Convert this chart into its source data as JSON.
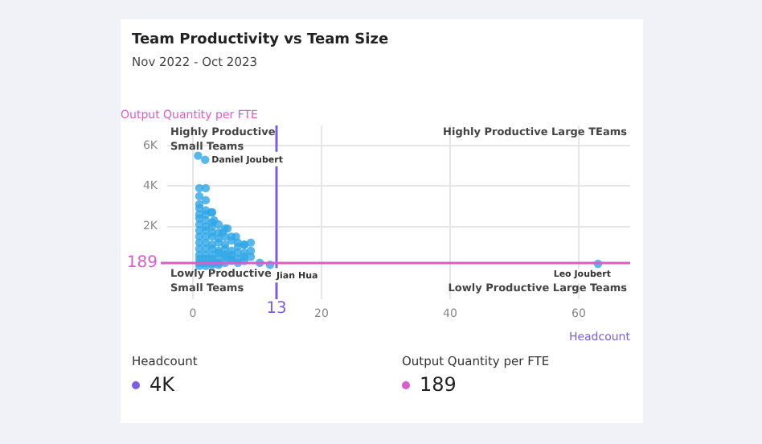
{
  "chart_data": {
    "type": "scatter",
    "title": "Team Productivity vs Team Size",
    "subtitle": "Nov 2022 - Oct 2023",
    "xlabel": "Headcount",
    "ylabel": "Output Quantity per FTE",
    "xlim": [
      -4,
      68
    ],
    "xticks": [
      0,
      20,
      40,
      60
    ],
    "ylim": [
      -1600,
      7000
    ],
    "yticks": [
      {
        "value": 2000,
        "label": "2K"
      },
      {
        "value": 4000,
        "label": "4K"
      },
      {
        "value": 6000,
        "label": "6K"
      }
    ],
    "grid": true,
    "marker": "circle",
    "series": [
      {
        "color": "#2fa6e6",
        "x": [
          0.8,
          1.9,
          1,
          2,
          1,
          2,
          1,
          1,
          2,
          1,
          2,
          3,
          1,
          2,
          3,
          1,
          2,
          3,
          4,
          1,
          2,
          3,
          4,
          5,
          1,
          2,
          3,
          4,
          5,
          6,
          1,
          2,
          3,
          4,
          5,
          6,
          7,
          1,
          2,
          3,
          4,
          5,
          6,
          7,
          8,
          1,
          2,
          3,
          4,
          5,
          6,
          7,
          8,
          9,
          1,
          2,
          3,
          4,
          5,
          6,
          7,
          8,
          9,
          1,
          2,
          3,
          4,
          5,
          6,
          7,
          8,
          10.4,
          12,
          1,
          2,
          3,
          4,
          2.9,
          3.3,
          4.6,
          5.4,
          6.7,
          8,
          9,
          63
        ],
        "values": [
          5500,
          5300,
          3900,
          3900,
          3500,
          3300,
          3100,
          2900,
          2800,
          2600,
          2600,
          2700,
          2400,
          2300,
          2200,
          2100,
          2000,
          2000,
          2100,
          1800,
          1800,
          1700,
          1700,
          1900,
          1500,
          1500,
          1500,
          1400,
          1500,
          1500,
          1200,
          1200,
          1100,
          1200,
          1100,
          1300,
          1200,
          900,
          900,
          900,
          800,
          900,
          800,
          1000,
          1100,
          600,
          600,
          600,
          700,
          600,
          600,
          700,
          700,
          800,
          400,
          400,
          400,
          400,
          500,
          400,
          400,
          500,
          500,
          200,
          200,
          200,
          200,
          200,
          300,
          200,
          300,
          200,
          100,
          50,
          50,
          100,
          100,
          2700,
          2300,
          1700,
          1900,
          1500,
          1100,
          1200,
          150
        ]
      }
    ],
    "ref_lines": [
      {
        "axis": "x",
        "value": 13,
        "label": "13",
        "color": "#7a5fe0"
      },
      {
        "axis": "y",
        "value": 189,
        "label": "189",
        "color": "#d65fc9"
      }
    ],
    "annotations": [
      "Highly Productive Small Teams",
      "Highly Productive Large TEams",
      "Lowly Productive Small Teams",
      "Lowly Productive Large Teams",
      {
        "text": "Daniel Joubert",
        "x": 1.9,
        "y": 5300
      },
      {
        "text": "Jian Hua",
        "x": 12,
        "y": 100
      },
      {
        "text": "Leo Joubert",
        "x": 63,
        "y": 150
      },
      "Headcount",
      "4K",
      "Output Quantity per FTE",
      "189"
    ]
  }
}
